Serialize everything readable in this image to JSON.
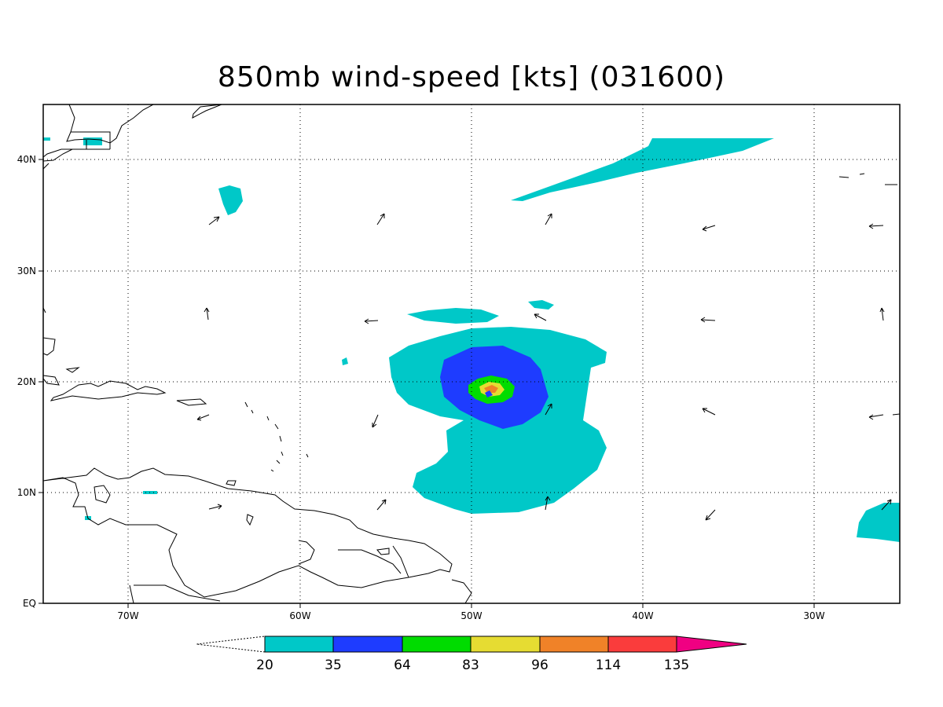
{
  "title": "850mb wind-speed [kts] (031600)",
  "map": {
    "lon_range": [
      -75,
      -25
    ],
    "lat_range": [
      0,
      45
    ],
    "lon_ticks": [
      "70W",
      "60W",
      "50W",
      "40W",
      "30W"
    ],
    "lat_ticks": [
      "EQ",
      "10N",
      "20N",
      "30N",
      "40N"
    ],
    "grid": "dotted"
  },
  "colorbar": {
    "levels": [
      "20",
      "35",
      "64",
      "83",
      "96",
      "114",
      "135"
    ],
    "colors": [
      "#00c8c8",
      "#1e3cff",
      "#00dc00",
      "#e6dc32",
      "#f08228",
      "#fa3c3c",
      "#f00082"
    ]
  }
}
